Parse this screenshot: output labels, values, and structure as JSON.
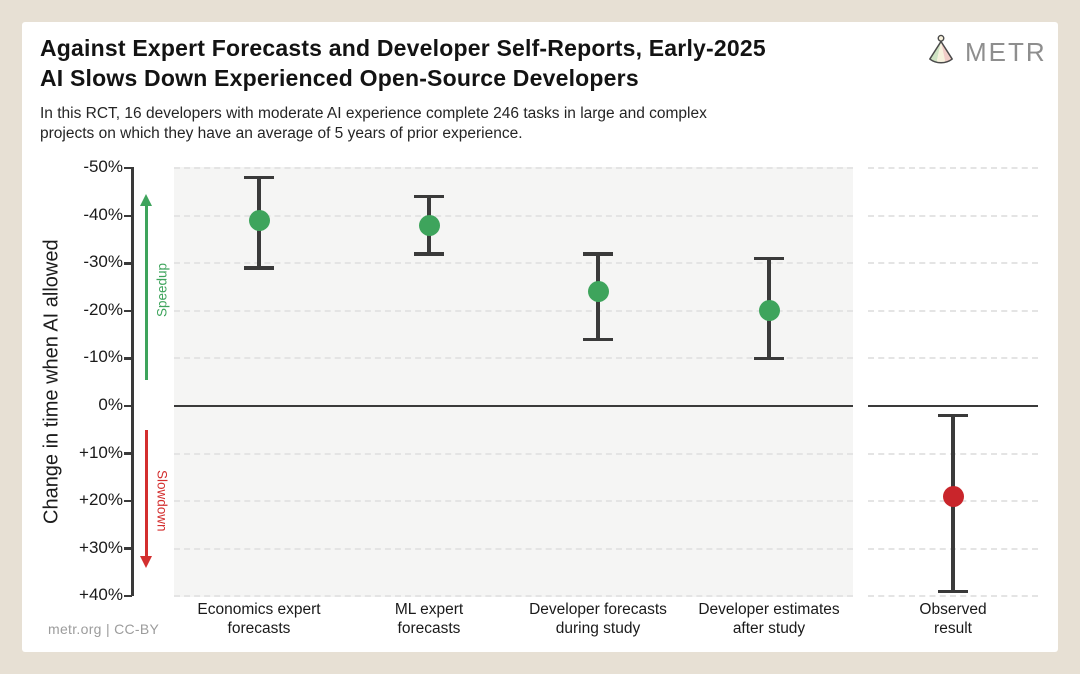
{
  "header": {
    "title_lines": [
      "Against Expert Forecasts and Developer Self-Reports, Early-2025",
      "AI Slows Down Experienced Open-Source Developers"
    ],
    "subtitle_lines": [
      "In this RCT, 16 developers with moderate AI experience complete 246 tasks in large and complex",
      "projects on which they have an average of 5 years of prior experience."
    ],
    "logo_text": "METR"
  },
  "footer": {
    "credit": "metr.org  |  CC-BY"
  },
  "chart_data": {
    "type": "scatter",
    "subtype": "forest-plot-with-error-bars",
    "title": "Against Expert Forecasts and Developer Self-Reports, Early-2025 AI Slows Down Experienced Open-Source Developers",
    "ylabel": "Change in time when AI allowed",
    "y_axis_note": "inverted: negative (speedup) plotted upward, positive (slowdown) downward",
    "ylim": [
      -50,
      40
    ],
    "ytick_values": [
      -50,
      -40,
      -30,
      -20,
      -10,
      0,
      10,
      20,
      30,
      40
    ],
    "ytick_labels": [
      "-50%",
      "-40%",
      "-30%",
      "-20%",
      "-10%",
      "0%",
      "+10%",
      "+20%",
      "+30%",
      "+40%"
    ],
    "grid": "horizontal dashed gridlines every 10%, solid dark line at 0%",
    "legend_position": "none",
    "annotations": {
      "speedup_label": "Speedup",
      "slowdown_label": "Slowdown"
    },
    "points": [
      {
        "category_lines": [
          "Economics expert",
          "forecasts"
        ],
        "value_pct": -39,
        "ci_pct": [
          -48,
          -29
        ],
        "panel": 0,
        "color": "#3ea45c"
      },
      {
        "category_lines": [
          "ML expert",
          "forecasts"
        ],
        "value_pct": -38,
        "ci_pct": [
          -44,
          -32
        ],
        "panel": 0,
        "color": "#3ea45c"
      },
      {
        "category_lines": [
          "Developer forecasts",
          "during study"
        ],
        "value_pct": -24,
        "ci_pct": [
          -32,
          -14
        ],
        "panel": 0,
        "color": "#3ea45c"
      },
      {
        "category_lines": [
          "Developer estimates",
          "after study"
        ],
        "value_pct": -20,
        "ci_pct": [
          -31,
          -10
        ],
        "panel": 0,
        "color": "#3ea45c"
      },
      {
        "category_lines": [
          "Observed",
          "result"
        ],
        "value_pct": 19,
        "ci_pct": [
          2,
          39
        ],
        "panel": 1,
        "color": "#c9252b"
      }
    ],
    "colors": {
      "forecast_point": "#3ea45c",
      "observed_point": "#c9252b",
      "speedup_accent": "#3ea45c",
      "slowdown_accent": "#d32f2f",
      "errorbar": "#3a3a3a",
      "zero_line": "#3a3a3a",
      "gridline": "#e4e4e4",
      "panel_bg_left": "#f5f5f4",
      "panel_bg_right": "#ffffff",
      "page_bg": "#e7e0d4",
      "card_bg": "#ffffff"
    }
  }
}
